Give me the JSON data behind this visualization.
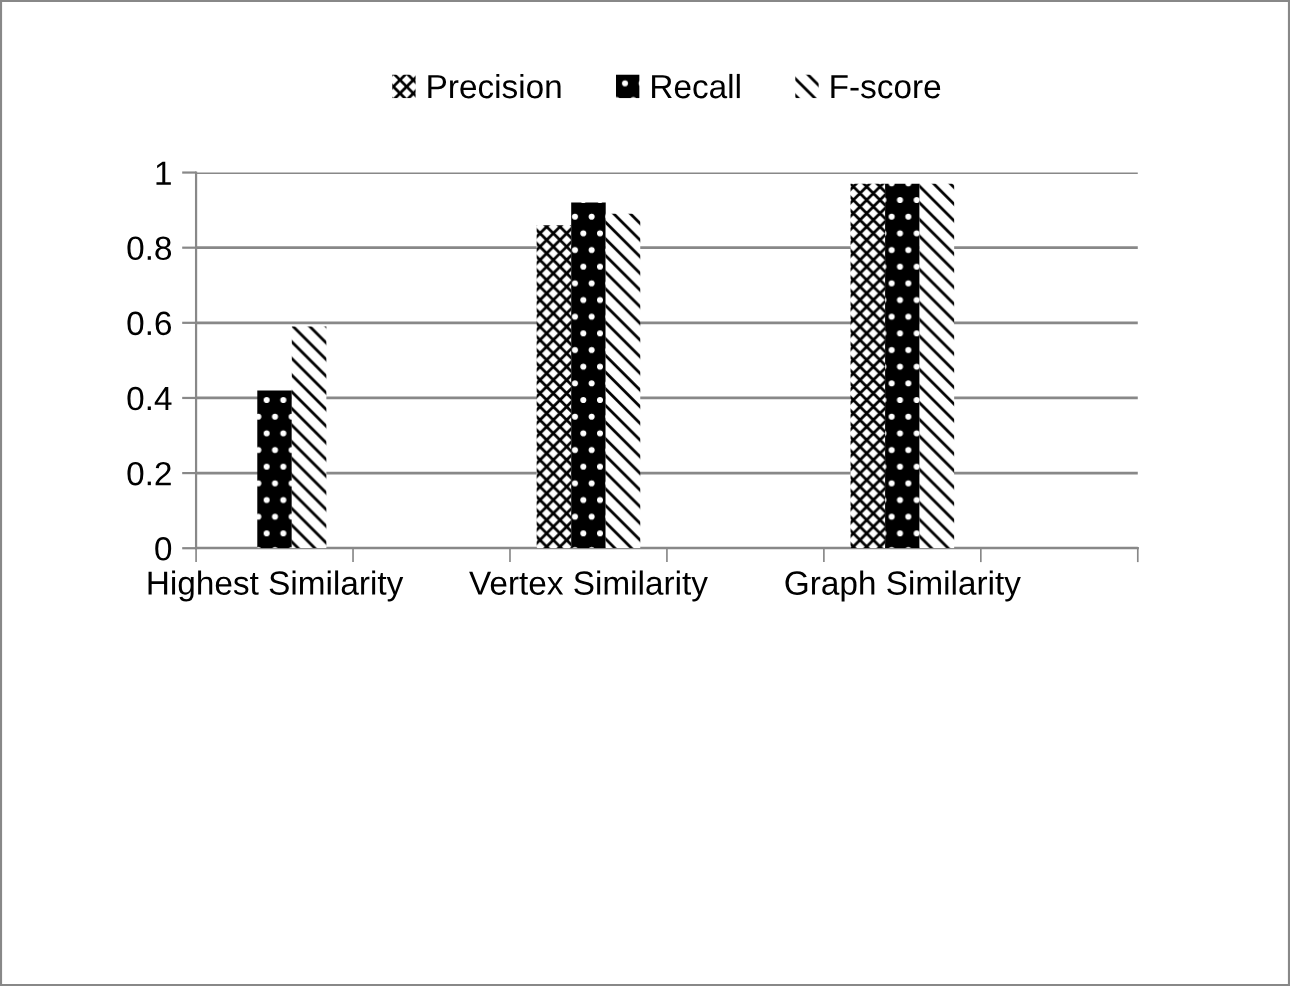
{
  "chart_data": {
    "type": "bar",
    "categories": [
      "Highest Similarity",
      null,
      "Vertex Similarity",
      null,
      "Graph Similarity",
      null
    ],
    "series": [
      {
        "name": "Precision",
        "color": "#000000",
        "values": [
          null,
          null,
          0.86,
          null,
          0.97,
          null
        ]
      },
      {
        "name": "Recall",
        "color": "#000000",
        "values": [
          0.42,
          null,
          0.92,
          null,
          0.97,
          null
        ]
      },
      {
        "name": "F-score",
        "color": "#000000",
        "values": [
          0.59,
          null,
          0.89,
          null,
          0.97,
          null
        ]
      }
    ],
    "ylim": [
      0,
      1
    ],
    "yticks": [
      0,
      0.2,
      0.4,
      0.6,
      0.8,
      1
    ],
    "grid": "y",
    "legend": "top"
  }
}
